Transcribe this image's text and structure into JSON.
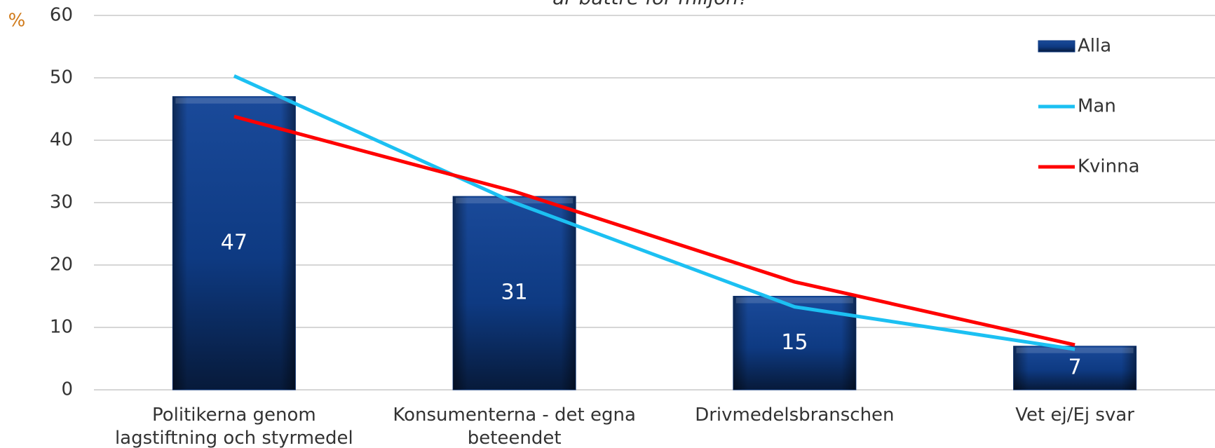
{
  "chart_data": {
    "type": "bar_line",
    "title": "är bättre för miljön?",
    "y_unit": "%",
    "categories": [
      "Politikerna genom lagstiftning och styrmedel",
      "Konsumenterna - det egna beteendet",
      "Drivmedelsbranschen",
      "Vet ej/Ej svar"
    ],
    "series": [
      {
        "name": "Alla",
        "type": "bar",
        "color": "#0e3a82",
        "values": [
          47,
          31,
          15,
          7
        ]
      },
      {
        "name": "Man",
        "type": "line",
        "color": "#1cc0f2",
        "values": [
          50.3,
          30,
          13.3,
          6.5
        ]
      },
      {
        "name": "Kvinna",
        "type": "line",
        "color": "#ff0000",
        "values": [
          43.8,
          31.8,
          17.3,
          7.2
        ]
      }
    ],
    "ylim": [
      0,
      60
    ],
    "yticks": [
      0,
      10,
      20,
      30,
      40,
      50,
      60
    ],
    "grid": true,
    "legend": "top-right"
  }
}
